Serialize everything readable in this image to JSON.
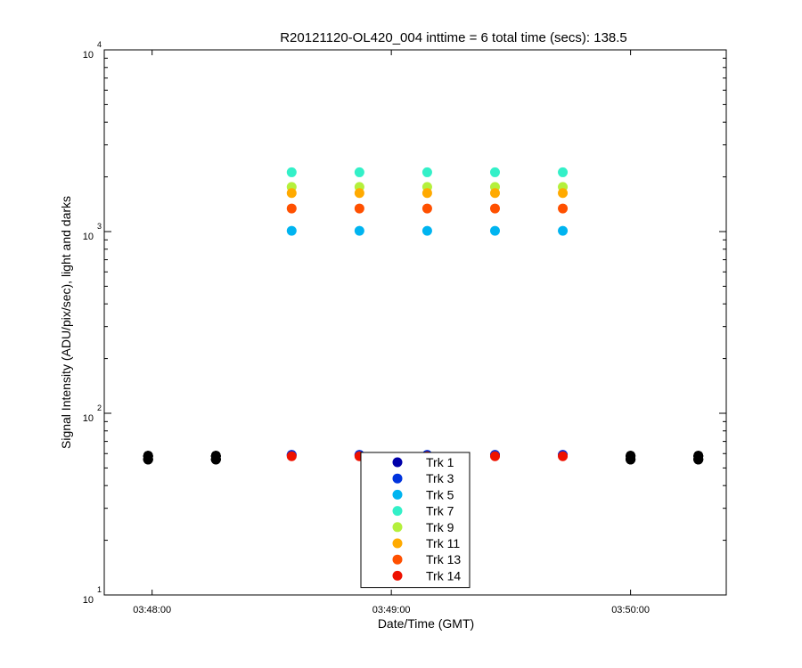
{
  "chart_data": {
    "type": "scatter",
    "title": "R20121120-OL420_004 inttime = 6 total time (secs): 138.5",
    "xlabel": "Date/Time (GMT)",
    "ylabel": "Signal Intensity (ADU/pix/sec), light and darks",
    "xscale": "time",
    "yscale": "log",
    "xlim": [
      "03:47:48",
      "03:50:24"
    ],
    "ylim": [
      10,
      10000
    ],
    "x_ticks": [
      "03:48:00",
      "03:49:00",
      "03:50:00"
    ],
    "y_ticks": [
      {
        "base": "10",
        "exp": "1"
      },
      {
        "base": "10",
        "exp": "2"
      },
      {
        "base": "10",
        "exp": "3"
      },
      {
        "base": "10",
        "exp": "4"
      }
    ],
    "grid": false,
    "legend_position": "bottom-center",
    "light_times": [
      "03:48:35",
      "03:48:52",
      "03:49:09",
      "03:49:26",
      "03:49:43"
    ],
    "dark_times": [
      "03:47:59",
      "03:48:16",
      "03:50:00",
      "03:50:17"
    ],
    "series": [
      {
        "name": "Trk 1",
        "color": "#0000aa",
        "light": 59,
        "dark": 57
      },
      {
        "name": "Trk 3",
        "color": "#0033dd",
        "light": 59,
        "dark": 57
      },
      {
        "name": "Trk 5",
        "color": "#00b4f0",
        "light": 1010,
        "dark": 57
      },
      {
        "name": "Trk 7",
        "color": "#33f0c8",
        "light": 2120,
        "dark": 57
      },
      {
        "name": "Trk 9",
        "color": "#b4f03c",
        "light": 1760,
        "dark": 57
      },
      {
        "name": "Trk 11",
        "color": "#ffaa00",
        "light": 1630,
        "dark": 57
      },
      {
        "name": "Trk 13",
        "color": "#ff5000",
        "light": 1340,
        "dark": 57
      },
      {
        "name": "Trk 14",
        "color": "#ee1100",
        "light": 58,
        "dark": 57
      }
    ],
    "dark_color": "#000000"
  }
}
